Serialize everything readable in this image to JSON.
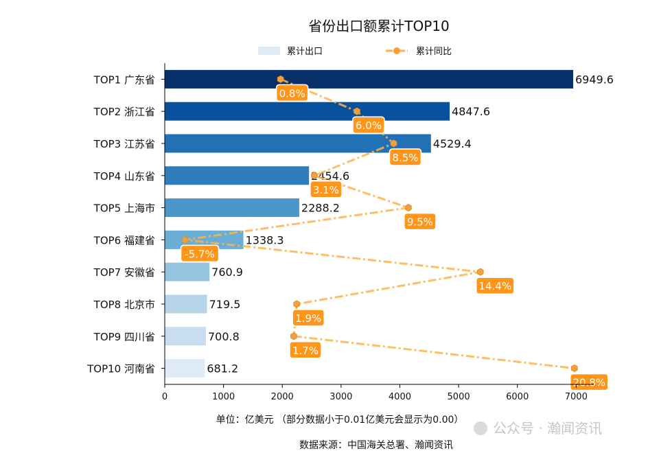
{
  "chart_data": {
    "type": "bar",
    "orientation": "horizontal",
    "title": "省份出口额累计TOP10",
    "categories": [
      "TOP1 广东省",
      "TOP2 浙江省",
      "TOP3 江苏省",
      "TOP4 山东省",
      "TOP5 上海市",
      "TOP6 福建省",
      "TOP7 安徽省",
      "TOP8 北京市",
      "TOP9 四川省",
      "TOP10 河南省"
    ],
    "series": [
      {
        "name": "累计出口",
        "type": "bar",
        "values": [
          6949.6,
          4847.6,
          4529.4,
          2454.6,
          2288.2,
          1338.3,
          760.9,
          719.5,
          700.8,
          681.2
        ],
        "colors": [
          "#08306b",
          "#08519c",
          "#2171b5",
          "#2f7ebc",
          "#4a98c9",
          "#6aaed6",
          "#94c4df",
          "#b5d4e9",
          "#c9ddf0",
          "#dfebf7"
        ]
      },
      {
        "name": "累计同比",
        "type": "line",
        "unit": "%",
        "values": [
          0.8,
          6.0,
          8.5,
          3.1,
          9.5,
          -5.7,
          14.4,
          1.9,
          1.7,
          20.8
        ],
        "color": "#ffb347",
        "label_color": "#ff9619"
      }
    ],
    "xaxis": {
      "ticks": [
        0,
        1000,
        2000,
        3000,
        4000,
        5000,
        6000,
        7000
      ],
      "xlim": [
        0,
        7300
      ]
    },
    "secondary_xaxis_hidden": {
      "xlim": [
        -7.08,
        22.12
      ]
    },
    "legend": {
      "placement": "top-center",
      "items": [
        "累计出口",
        "累计同比"
      ]
    },
    "xlabel": "单位：亿美元  （部分数据小于0.01亿美元会显示为0.00）",
    "source": "数据来源：中国海关总署、瀚闻资讯",
    "grid": false
  },
  "watermark": "公众号 · 瀚闻资讯"
}
